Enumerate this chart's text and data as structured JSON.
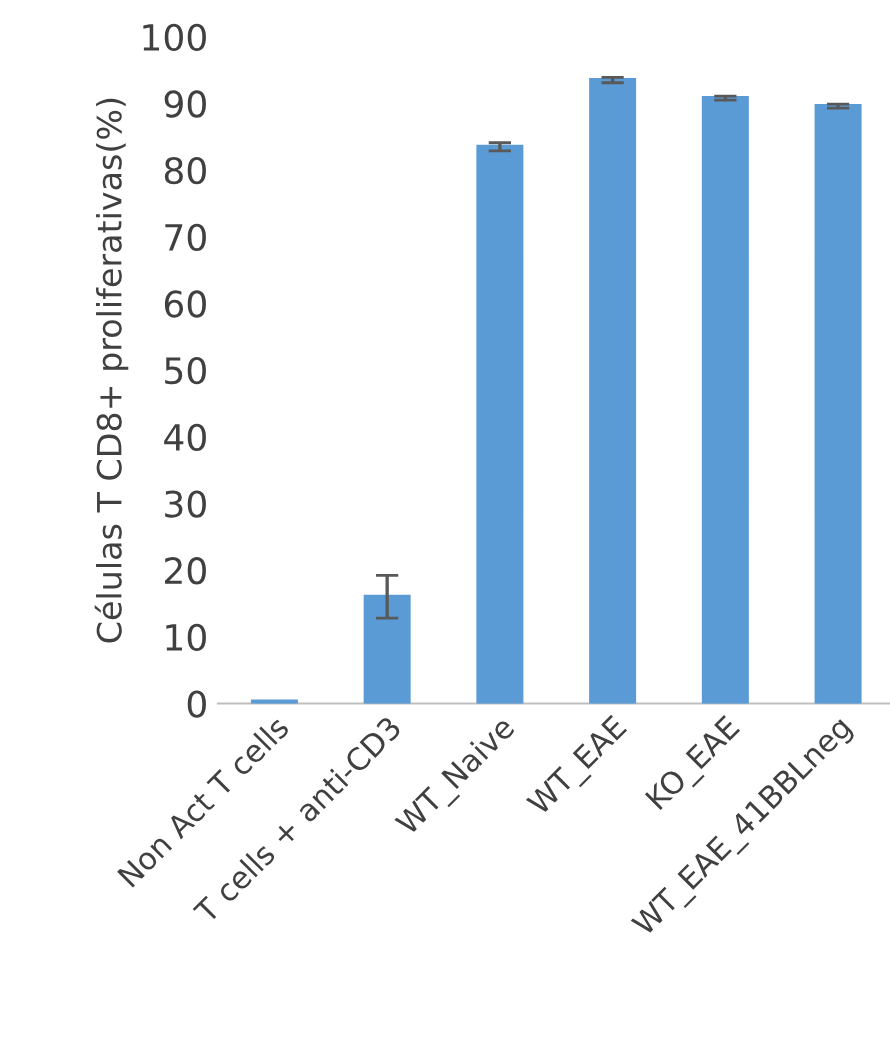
{
  "chart_data": {
    "type": "bar",
    "ylabel": "Células T CD8+ proliferativas(%)",
    "categories": [
      "Non Act T cells",
      "T cells + anti-CD3",
      "WT_Naive",
      "WT_EAE",
      "KO_EAE",
      "WT_EAE_41BBLneg"
    ],
    "values": [
      0.3,
      16,
      83.5,
      93.5,
      90.8,
      89.6
    ],
    "errors": [
      null,
      3.2,
      0.6,
      0.4,
      0.3,
      0.3
    ],
    "color": "#5b9bd5",
    "ylim": [
      0,
      100
    ],
    "yticks": [
      0,
      10,
      20,
      30,
      40,
      50,
      60,
      70,
      80,
      90,
      100
    ],
    "grid": false
  }
}
